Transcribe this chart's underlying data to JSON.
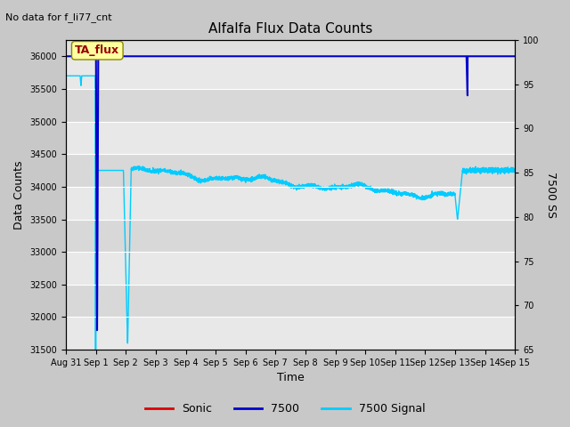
{
  "title": "Alfalfa Flux Data Counts",
  "subtitle": "No data for f_li77_cnt",
  "xlabel": "Time",
  "ylabel_left": "Data Counts",
  "ylabel_right": "7500 SS",
  "ylim_left": [
    31500,
    36250
  ],
  "ylim_right": [
    65,
    100
  ],
  "yticks_left": [
    31500,
    32000,
    32500,
    33000,
    33500,
    34000,
    34500,
    35000,
    35500,
    36000
  ],
  "yticks_right": [
    65,
    70,
    75,
    80,
    85,
    90,
    95,
    100
  ],
  "xtick_labels": [
    "Aug 31",
    "Sep 1",
    "Sep 2",
    "Sep 3",
    "Sep 4",
    "Sep 5",
    "Sep 6",
    "Sep 7",
    "Sep 8",
    "Sep 9",
    "Sep 10",
    "Sep 11",
    "Sep 12",
    "Sep 13",
    "Sep 14",
    "Sep 15"
  ],
  "fig_bg_color": "#c8c8c8",
  "plot_bg_color": "#e0e0e0",
  "grid_band_colors": [
    "#e8e8e8",
    "#d8d8d8"
  ],
  "annotation_box_text": "TA_flux",
  "annotation_box_facecolor": "#ffffa0",
  "annotation_box_edgecolor": "#888800",
  "line_7500_color": "#0000cc",
  "line_cyan_color": "#00ccff",
  "line_sonic_color": "#dd0000",
  "legend_entries": [
    "Sonic",
    "7500",
    "7500 Signal"
  ],
  "n_days": 15
}
